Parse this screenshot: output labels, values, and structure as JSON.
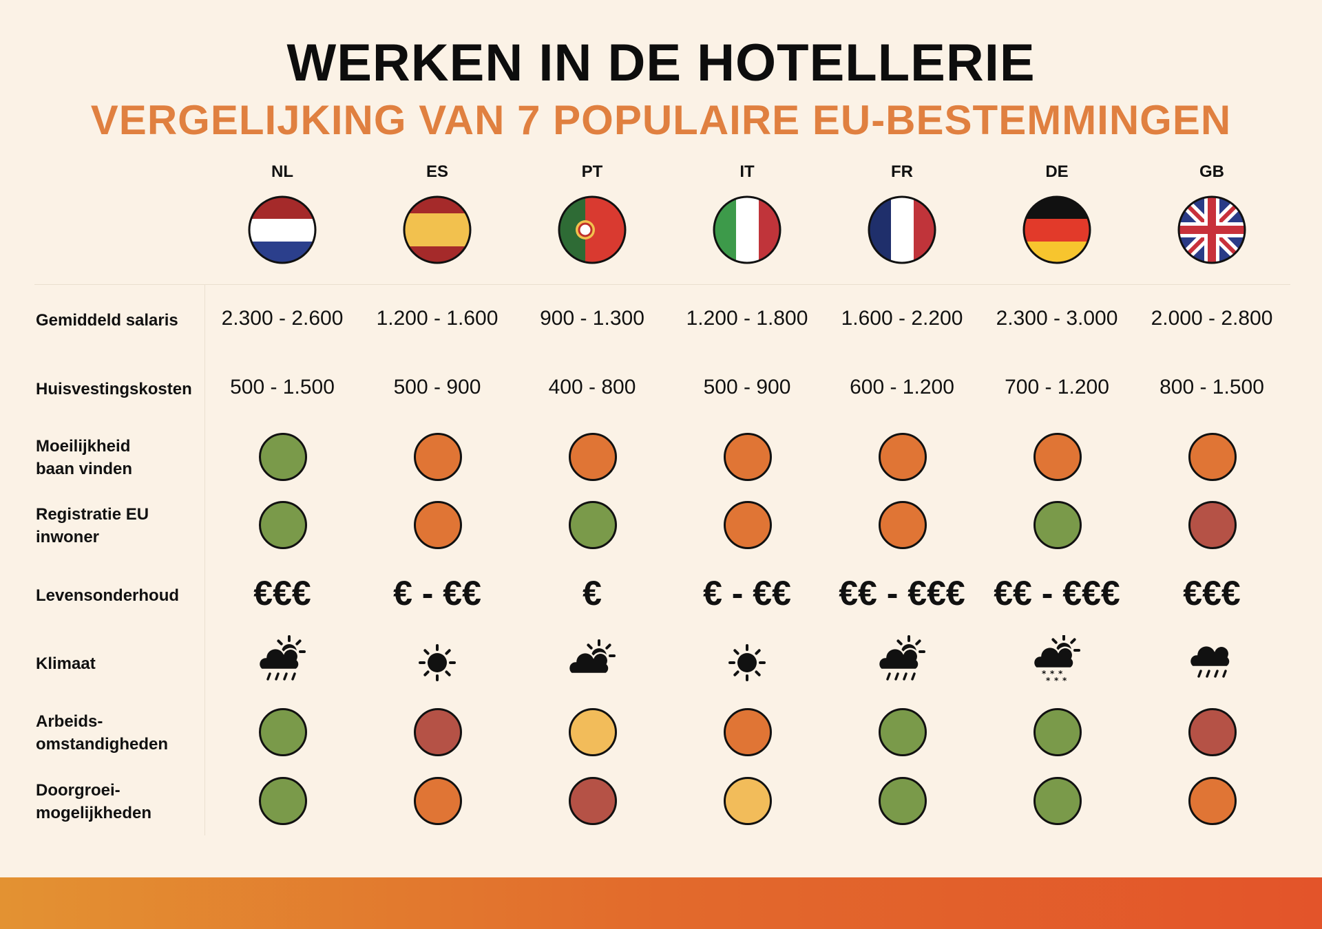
{
  "title": "WERKEN IN DE HOTELLERIE",
  "subtitle": "VERGELIJKING VAN 7 POPULAIRE EU-BESTEMMINGEN",
  "countries": [
    {
      "code": "NL",
      "flag": "netherlands-flag"
    },
    {
      "code": "ES",
      "flag": "spain-flag"
    },
    {
      "code": "PT",
      "flag": "portugal-flag"
    },
    {
      "code": "IT",
      "flag": "italy-flag"
    },
    {
      "code": "FR",
      "flag": "france-flag"
    },
    {
      "code": "DE",
      "flag": "germany-flag"
    },
    {
      "code": "GB",
      "flag": "uk-flag"
    }
  ],
  "rows": {
    "salaris": {
      "label": "Gemiddeld salaris",
      "values": [
        "2.300 - 2.600",
        "1.200 - 1.600",
        "900 - 1.300",
        "1.200 - 1.800",
        "1.600 - 2.200",
        "2.300 - 3.000",
        "2.000 - 2.800"
      ]
    },
    "huisvesting": {
      "label": "Huisvestingskosten",
      "values": [
        "500 - 1.500",
        "500 - 900",
        "400 - 800",
        "500 - 900",
        "600 - 1.200",
        "700 - 1.200",
        "800 - 1.500"
      ]
    },
    "baan": {
      "label": "Moeilijkheid\nbaan vinden",
      "ratings": [
        "green",
        "orange",
        "orange",
        "orange",
        "orange",
        "orange",
        "orange"
      ]
    },
    "registratie": {
      "label": "Registratie EU\ninwoner",
      "ratings": [
        "green",
        "orange",
        "green",
        "orange",
        "orange",
        "green",
        "red"
      ]
    },
    "levensonderhoud": {
      "label": "Levensonderhoud",
      "values": [
        "€€€",
        "€ - €€",
        "€",
        "€ - €€",
        "€€ - €€€",
        "€€ - €€€",
        "€€€"
      ]
    },
    "klimaat": {
      "label": "Klimaat",
      "icons": [
        "sun-cloud-rain-icon",
        "sun-icon",
        "sun-cloud-icon",
        "sun-icon",
        "sun-cloud-rain-icon",
        "sun-cloud-snow-icon",
        "cloud-rain-icon"
      ]
    },
    "arbeid": {
      "label": "Arbeids-\nomstandigheden",
      "ratings": [
        "green",
        "red",
        "yellow",
        "orange",
        "green",
        "green",
        "red"
      ]
    },
    "doorgroei": {
      "label": "Doorgroei-\nmogelijkheden",
      "ratings": [
        "green",
        "orange",
        "red",
        "yellow",
        "green",
        "green",
        "orange"
      ]
    }
  },
  "rating_colors": {
    "green": "#7a9a4a",
    "orange": "#e07535",
    "red": "#b55246",
    "yellow": "#f2bc5a"
  },
  "accent_color": "#e08040"
}
